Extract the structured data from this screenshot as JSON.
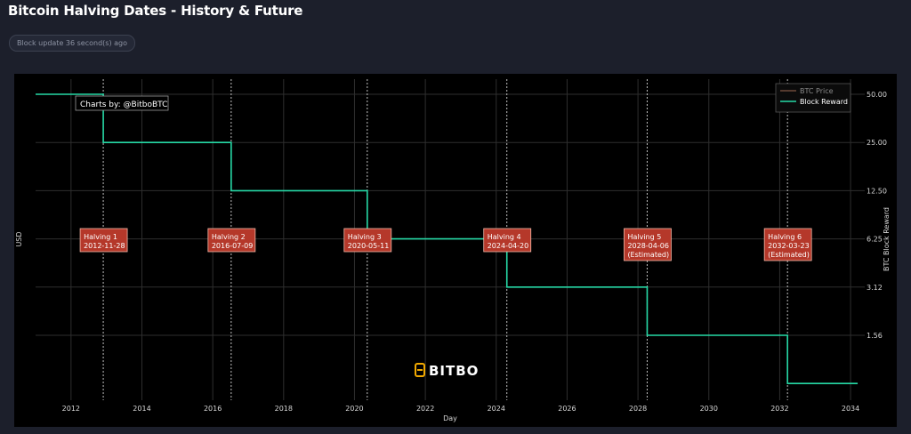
{
  "page": {
    "title": "Bitcoin Halving Dates - History & Future",
    "status": "Block update 36 second(s) ago"
  },
  "colors": {
    "reward_line": "#26d9a6",
    "annotation_fill": "#b5382a",
    "annotation_border": "#f2b8a8",
    "halving_line": "#bfbfbf",
    "grid": "#2e2e2e",
    "logo_accent": "#f2a900"
  },
  "chart_data": {
    "type": "line",
    "xlabel": "Day",
    "ylabel_left": "USD",
    "ylabel_right": "BTC Block Reward",
    "x_range": [
      2011.0,
      2034.4
    ],
    "x_ticks": [
      2012,
      2014,
      2016,
      2018,
      2020,
      2022,
      2024,
      2026,
      2028,
      2030,
      2032,
      2034
    ],
    "y_scale": "log",
    "y_ticks": [
      {
        "value": 50,
        "label": "50.00"
      },
      {
        "value": 25,
        "label": "25.00"
      },
      {
        "value": 12.5,
        "label": "12.50"
      },
      {
        "value": 6.25,
        "label": "6.25"
      },
      {
        "value": 3.125,
        "label": "3.12"
      },
      {
        "value": 1.5625,
        "label": "1.56"
      }
    ],
    "grid": true,
    "legend_position": "top-right",
    "legend": [
      "BTC Price",
      "Block Reward"
    ],
    "series": [
      {
        "name": "Block Reward",
        "step": true,
        "points": [
          {
            "x": 2011.0,
            "y": 50
          },
          {
            "x": 2012.91,
            "y": 25
          },
          {
            "x": 2016.52,
            "y": 12.5
          },
          {
            "x": 2020.36,
            "y": 6.25
          },
          {
            "x": 2024.3,
            "y": 3.125
          },
          {
            "x": 2028.26,
            "y": 1.5625
          },
          {
            "x": 2032.22,
            "y": 0.78125
          },
          {
            "x": 2034.2,
            "y": 0.78125
          }
        ]
      }
    ],
    "halvings": [
      {
        "x": 2012.91,
        "title": "Halving 1",
        "date": "2012-11-28",
        "note": ""
      },
      {
        "x": 2016.52,
        "title": "Halving 2",
        "date": "2016-07-09",
        "note": ""
      },
      {
        "x": 2020.36,
        "title": "Halving 3",
        "date": "2020-05-11",
        "note": ""
      },
      {
        "x": 2024.3,
        "title": "Halving 4",
        "date": "2024-04-20",
        "note": ""
      },
      {
        "x": 2028.26,
        "title": "Halving 5",
        "date": "2028-04-06",
        "note": "(Estimated)"
      },
      {
        "x": 2032.22,
        "title": "Halving 6",
        "date": "2032-03-23",
        "note": "(Estimated)"
      }
    ],
    "credit": "Charts by: @BitboBTC",
    "watermark": "BITBO"
  }
}
